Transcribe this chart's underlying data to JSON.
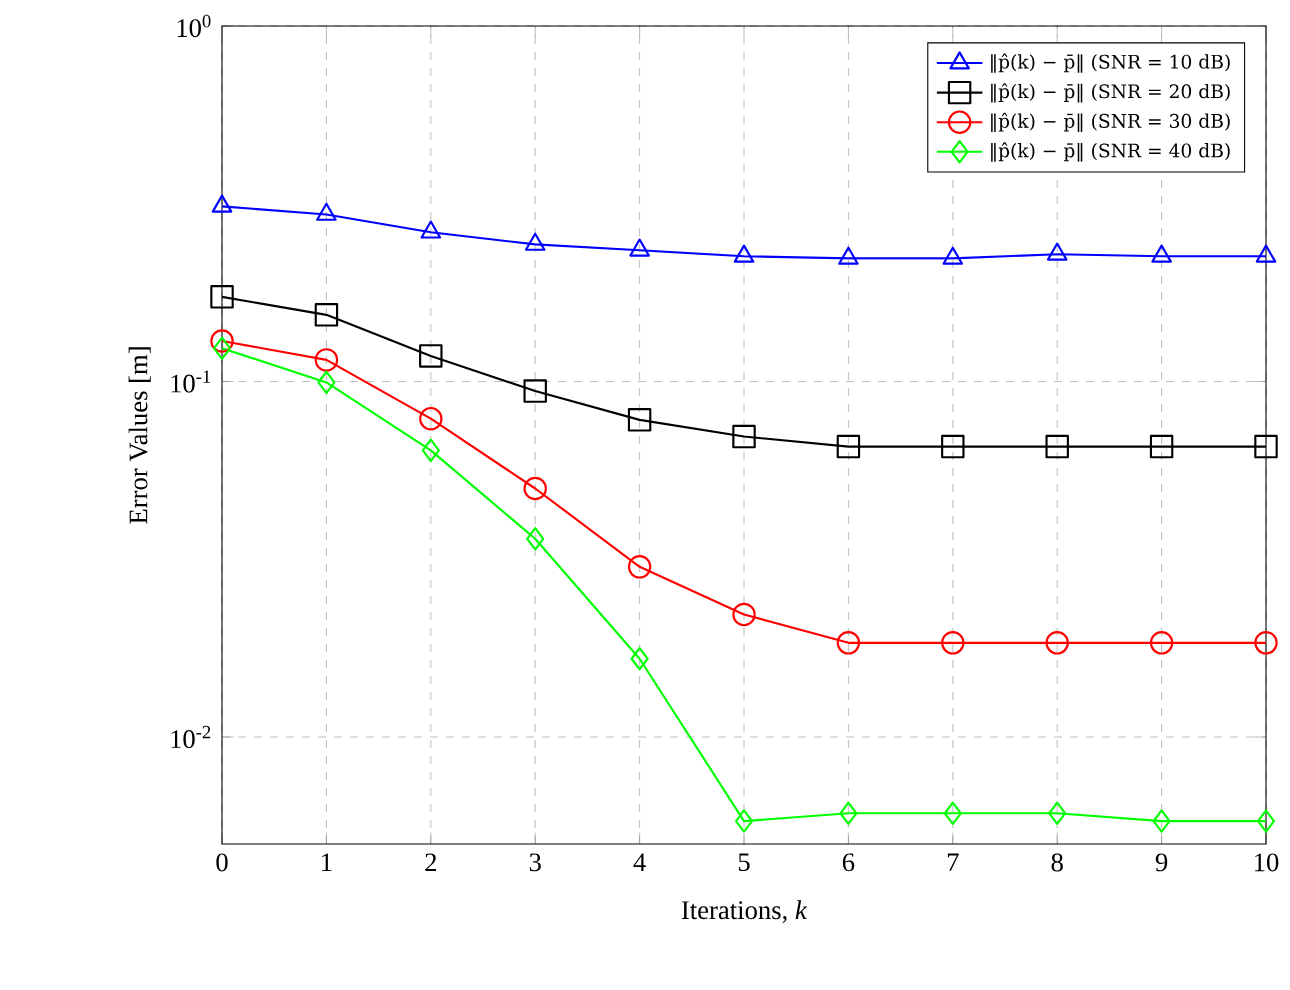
{
  "chart_data": {
    "type": "line",
    "xlabel": "Iterations, *k*",
    "ylabel": "Error Values [m]",
    "x": [
      0,
      1,
      2,
      3,
      4,
      5,
      6,
      7,
      8,
      9,
      10
    ],
    "series": [
      {
        "name": "‖p̂(k) − p̄‖ (SNR = 10 dB)",
        "color": "#0000ff",
        "marker": "triangle",
        "values": [
          0.311,
          0.295,
          0.263,
          0.243,
          0.234,
          0.225,
          0.222,
          0.222,
          0.228,
          0.225,
          0.225
        ]
      },
      {
        "name": "‖p̂(k) − p̄‖ (SNR = 20 dB)",
        "color": "#000000",
        "marker": "square",
        "values": [
          0.173,
          0.154,
          0.118,
          0.094,
          0.078,
          0.07,
          0.0656,
          0.0656,
          0.0656,
          0.0656,
          0.0656
        ]
      },
      {
        "name": "‖p̂(k) − p̄‖ (SNR = 30 dB)",
        "color": "#ff0000",
        "marker": "circle",
        "values": [
          0.13,
          0.115,
          0.0786,
          0.05,
          0.0301,
          0.0221,
          0.0184,
          0.0184,
          0.0184,
          0.0184,
          0.0184
        ]
      },
      {
        "name": "‖p̂(k) − p̄‖ (SNR = 40 dB)",
        "color": "#00ff00",
        "marker": "diamond",
        "values": [
          0.124,
          0.0994,
          0.064,
          0.0361,
          0.0166,
          0.0058,
          0.0061,
          0.0061,
          0.0061,
          0.0058,
          0.0058
        ]
      }
    ],
    "xlim": [
      0,
      10
    ],
    "xticks": [
      0,
      1,
      2,
      3,
      4,
      5,
      6,
      7,
      8,
      9,
      10
    ],
    "ylim": [
      0.005,
      1
    ],
    "yticks": [
      {
        "value": 0.01,
        "label": "10$^{-2}$"
      },
      {
        "value": 0.1,
        "label": "10$^{-1}$"
      },
      {
        "value": 1,
        "label": "10$^{0}$"
      }
    ],
    "log": "y",
    "grid": true,
    "legend": "top right",
    "line_style": "solid"
  }
}
